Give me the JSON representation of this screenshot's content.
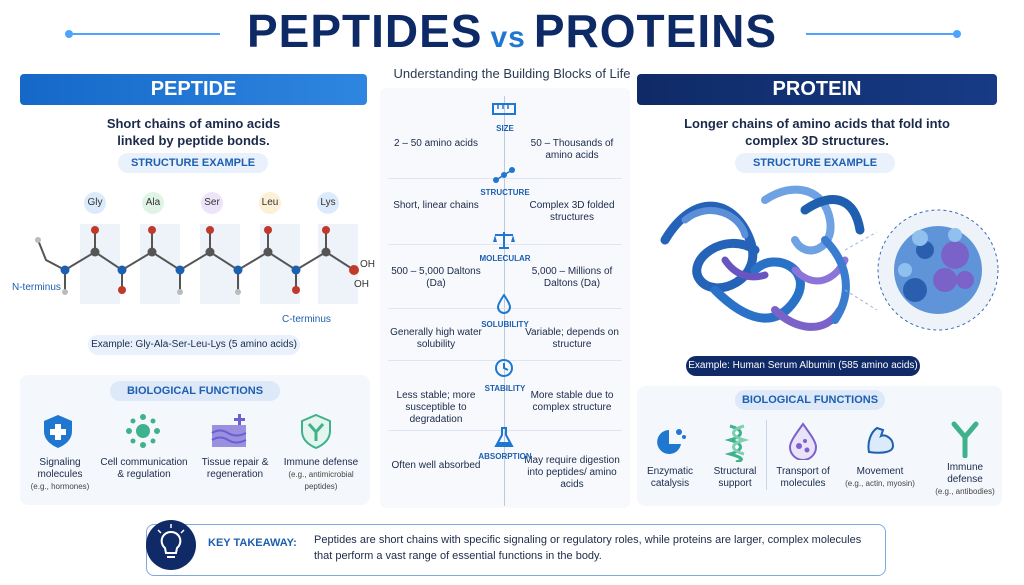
{
  "title": {
    "left": "PEPTIDES",
    "vs": "vs",
    "right": "PROTEINS"
  },
  "subtitle": "Understanding the Building Blocks of Life",
  "peptide": {
    "header": "PEPTIDE",
    "description_1": "Short chains of amino acids",
    "description_2": "linked by peptide bonds.",
    "structure_label": "STRUCTURE EXAMPLE",
    "amino_acids": [
      "Gly",
      "Ala",
      "Ser",
      "Leu",
      "Lys"
    ],
    "n_terminus": "N-terminus",
    "c_terminus": "C-terminus",
    "oh_1": "OH",
    "oh_2": "OH",
    "example": "Example: Gly-Ala-Ser-Leu-Lys (5 amino acids)",
    "functions_title": "BIOLOGICAL FUNCTIONS",
    "functions": [
      {
        "label": "Signaling molecules",
        "sub": "(e.g., hormones)",
        "icon": "shield-plus-icon"
      },
      {
        "label": "Cell communication & regulation",
        "sub": "",
        "icon": "cell-network-icon"
      },
      {
        "label": "Tissue repair & regeneration",
        "sub": "",
        "icon": "tissue-repair-icon"
      },
      {
        "label": "Immune defense",
        "sub": "(e.g., antimicrobial peptides)",
        "icon": "shield-y-icon"
      }
    ]
  },
  "protein": {
    "header": "PROTEIN",
    "description_1": "Longer chains of amino acids that fold into",
    "description_2": "complex 3D structures.",
    "structure_label": "STRUCTURE EXAMPLE",
    "example": "Example: Human Serum Albumin (585 amino acids)",
    "functions_title": "BIOLOGICAL FUNCTIONS",
    "functions": [
      {
        "label": "Enzymatic catalysis",
        "sub": "",
        "icon": "enzyme-icon"
      },
      {
        "label": "Structural support",
        "sub": "",
        "icon": "helix-icon"
      },
      {
        "label": "Transport of molecules",
        "sub": "",
        "icon": "drop-icon"
      },
      {
        "label": "Movement",
        "sub": "(e.g., actin, myosin)",
        "icon": "muscle-icon"
      },
      {
        "label": "Immune defense",
        "sub": "(e.g., antibodies)",
        "icon": "antibody-icon"
      }
    ]
  },
  "comparison": [
    {
      "label": "SIZE",
      "peptide": "2 – 50 amino acids",
      "protein": "50 – Thousands of amino acids",
      "icon": "ruler-icon"
    },
    {
      "label": "STRUCTURE",
      "peptide": "Short, linear chains",
      "protein": "Complex 3D folded structures",
      "icon": "chain-icon"
    },
    {
      "label": "MOLECULAR",
      "peptide": "500 – 5,000 Daltons (Da)",
      "protein": "5,000 – Millions of Daltons (Da)",
      "icon": "scale-icon"
    },
    {
      "label": "SOLUBILITY",
      "peptide": "Generally high water solubility",
      "protein": "Variable; depends on structure",
      "icon": "water-drop-icon"
    },
    {
      "label": "STABILITY",
      "peptide": "Less stable; more susceptible to degradation",
      "protein": "More stable due to complex structure",
      "icon": "clock-icon"
    },
    {
      "label": "ABSORPTION",
      "peptide": "Often well absorbed",
      "protein": "May require digestion into peptides/ amino acids",
      "icon": "flask-icon"
    }
  ],
  "key_takeaway": {
    "heading": "KEY TAKEAWAY:",
    "line_1": "Peptides are short chains with specific signaling or regulatory roles, while proteins are larger, complex molecules",
    "line_2": "that perform a vast range of essential functions in the body.",
    "icon": "lightbulb-icon"
  },
  "colors": {
    "peptide_blue": "#1f77d0",
    "protein_navy": "#0f2a66",
    "accent_light": "#e8f1fc"
  }
}
